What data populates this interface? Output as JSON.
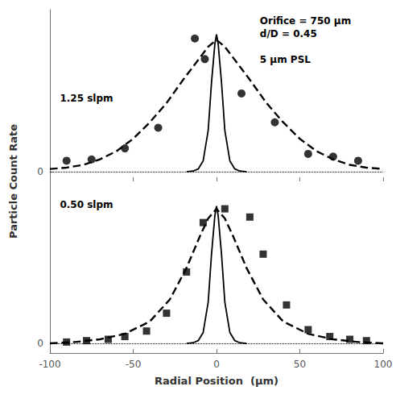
{
  "chart_data": [
    {
      "type": "scatter",
      "ylabel": "Particle Count Rate",
      "annotations": [
        "Orifice = 750 μm\nd/D = 0.45\n\n5 μm PSL",
        "1.25 slpm"
      ],
      "xlim": [
        -100,
        100
      ],
      "xticks": [
        -100,
        -50,
        0,
        50,
        100
      ],
      "ylim": [
        -0.07,
        1.18
      ],
      "yticks": [
        0
      ],
      "grid": "y",
      "tick_labels": "y",
      "series": [
        {
          "type": "scatter",
          "marker": "circle",
          "color": "#000000",
          "x": [
            -90,
            -75,
            -55,
            -35,
            -13,
            -7,
            15,
            35,
            55,
            70,
            85
          ],
          "values": [
            0.08,
            0.09,
            0.17,
            0.32,
            0.97,
            0.82,
            0.57,
            0.36,
            0.13,
            0.11,
            0.08
          ]
        },
        {
          "type": "line",
          "line_style": "dashed",
          "color": "#000000",
          "x": [
            -100,
            -90,
            -80,
            -70,
            -60,
            -50,
            -40,
            -30,
            -20,
            -10,
            -5,
            0,
            5,
            10,
            20,
            30,
            40,
            50,
            60,
            70,
            80,
            90,
            100
          ],
          "values": [
            0.02,
            0.03,
            0.05,
            0.09,
            0.15,
            0.24,
            0.36,
            0.5,
            0.67,
            0.83,
            0.91,
            0.96,
            0.91,
            0.83,
            0.67,
            0.5,
            0.36,
            0.24,
            0.15,
            0.09,
            0.05,
            0.03,
            0.02
          ]
        },
        {
          "type": "line",
          "line_style": "solid",
          "color": "#000000",
          "x": [
            -18,
            -14,
            -11,
            -8,
            -5,
            -3,
            -1,
            0,
            1,
            3,
            5,
            8,
            11,
            14,
            18
          ],
          "values": [
            0.0,
            0.005,
            0.02,
            0.08,
            0.3,
            0.65,
            0.93,
            1.0,
            0.93,
            0.65,
            0.3,
            0.08,
            0.02,
            0.005,
            0.0
          ]
        }
      ]
    },
    {
      "type": "scatter",
      "xlabel": "Radial Position  (μm)",
      "annotations": [
        "0.50 slpm"
      ],
      "xlim": [
        -100,
        100
      ],
      "xticks": [
        -100,
        -50,
        0,
        50,
        100
      ],
      "ylim": [
        -0.07,
        1.18
      ],
      "yticks": [
        0
      ],
      "grid": "y",
      "series": [
        {
          "type": "scatter",
          "marker": "square",
          "color": "#000000",
          "x": [
            -90,
            -78,
            -65,
            -55,
            -42,
            -30,
            -18,
            -8,
            5,
            20,
            28,
            42,
            55,
            68,
            80,
            90
          ],
          "values": [
            0.01,
            0.02,
            0.03,
            0.05,
            0.09,
            0.22,
            0.52,
            0.88,
            0.98,
            0.92,
            0.65,
            0.28,
            0.1,
            0.05,
            0.03,
            0.02
          ]
        },
        {
          "type": "line",
          "line_style": "dashed",
          "color": "#000000",
          "x": [
            -100,
            -85,
            -70,
            -55,
            -40,
            -28,
            -18,
            -10,
            -5,
            0,
            5,
            10,
            18,
            28,
            40,
            55,
            70,
            85,
            100
          ],
          "values": [
            0.0,
            0.01,
            0.03,
            0.07,
            0.16,
            0.32,
            0.55,
            0.78,
            0.91,
            0.98,
            0.91,
            0.78,
            0.55,
            0.32,
            0.16,
            0.07,
            0.03,
            0.01,
            0.0
          ]
        },
        {
          "type": "line",
          "line_style": "solid",
          "color": "#000000",
          "x": [
            -18,
            -14,
            -11,
            -8,
            -5,
            -3,
            -1,
            0,
            1,
            3,
            5,
            8,
            11,
            14,
            18
          ],
          "values": [
            0.0,
            0.005,
            0.02,
            0.08,
            0.3,
            0.65,
            0.93,
            1.0,
            0.93,
            0.65,
            0.3,
            0.08,
            0.02,
            0.005,
            0.0
          ]
        }
      ]
    }
  ]
}
